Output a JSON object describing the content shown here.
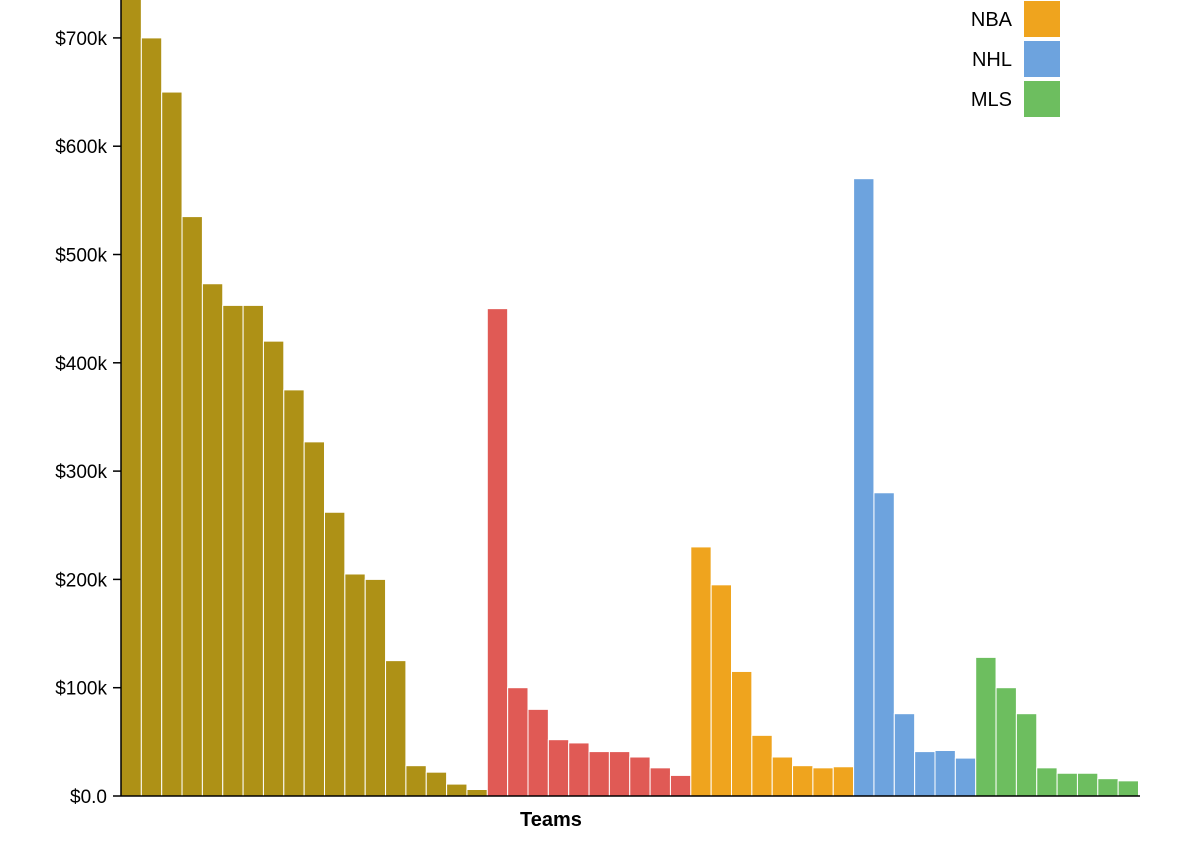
{
  "chart_data": {
    "type": "bar",
    "xlabel": "Teams",
    "ylabel": "",
    "ylim": [
      0,
      735000
    ],
    "ytick_values": [
      0,
      100000,
      200000,
      300000,
      400000,
      500000,
      600000,
      700000
    ],
    "ytick_labels": [
      "$0.0",
      "$100k",
      "$200k",
      "$300k",
      "$400k",
      "$500k",
      "$600k",
      "$700k"
    ],
    "grid": false,
    "legend_placement": "top-right",
    "legend": [
      {
        "name": "NBA",
        "color": "#EFA41E"
      },
      {
        "name": "NHL",
        "color": "#6DA3DE"
      },
      {
        "name": "MLS",
        "color": "#6DBE5F"
      }
    ],
    "series": [
      {
        "color": "#AE9116",
        "values": [
          740000,
          700000,
          650000,
          535000,
          473000,
          453000,
          453000,
          420000,
          375000,
          327000,
          262000,
          205000,
          200000,
          125000,
          28000,
          22000,
          11000,
          6000
        ]
      },
      {
        "color": "#E05A55",
        "values": [
          450000,
          100000,
          80000,
          52000,
          49000,
          41000,
          41000,
          36000,
          26000,
          19000
        ]
      },
      {
        "color": "#EFA41E",
        "values": [
          230000,
          195000,
          115000,
          56000,
          36000,
          28000,
          26000,
          27000
        ]
      },
      {
        "color": "#6DA3DE",
        "values": [
          570000,
          280000,
          76000,
          41000,
          42000,
          35000
        ]
      },
      {
        "color": "#6DBE5F",
        "values": [
          128000,
          100000,
          76000,
          26000,
          21000,
          21000,
          16000,
          14000
        ]
      }
    ]
  }
}
